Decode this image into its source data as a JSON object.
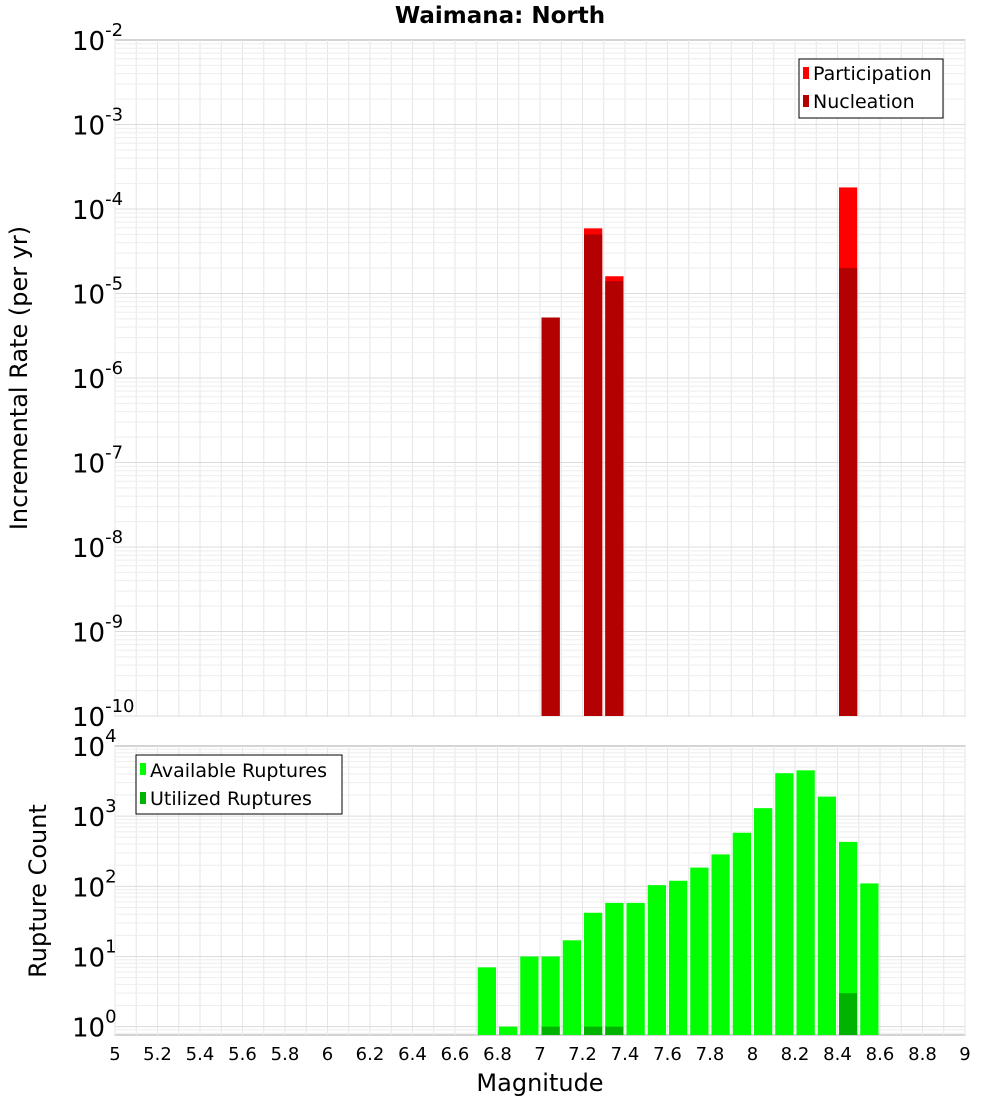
{
  "chart_data": [
    {
      "type": "bar",
      "title": "Waimana: North",
      "ylabel": "Incremental Rate (per yr)",
      "xlabel": "",
      "yscale": "log",
      "xlim": [
        5,
        9
      ],
      "ylim": [
        1e-10,
        0.01
      ],
      "bin_width": 0.1,
      "y_ticks": [
        {
          "base": "10",
          "exp": "-10",
          "value": 1e-10
        },
        {
          "base": "10",
          "exp": "-9",
          "value": 1e-09
        },
        {
          "base": "10",
          "exp": "-8",
          "value": 1e-08
        },
        {
          "base": "10",
          "exp": "-7",
          "value": 1e-07
        },
        {
          "base": "10",
          "exp": "-6",
          "value": 1e-06
        },
        {
          "base": "10",
          "exp": "-5",
          "value": 1e-05
        },
        {
          "base": "10",
          "exp": "-4",
          "value": 0.0001
        },
        {
          "base": "10",
          "exp": "-3",
          "value": 0.001
        },
        {
          "base": "10",
          "exp": "-2",
          "value": 0.01
        }
      ],
      "legend_position": "top-right",
      "series": [
        {
          "name": "Participation",
          "color": "#ff0000",
          "points": [
            {
              "x": 7.05,
              "y": 5.2e-06
            },
            {
              "x": 7.25,
              "y": 5.9e-05
            },
            {
              "x": 7.35,
              "y": 1.6e-05
            },
            {
              "x": 8.45,
              "y": 0.00018
            }
          ]
        },
        {
          "name": "Nucleation",
          "color": "#b30000",
          "points": [
            {
              "x": 7.05,
              "y": 5.2e-06
            },
            {
              "x": 7.25,
              "y": 5e-05
            },
            {
              "x": 7.35,
              "y": 1.4e-05
            },
            {
              "x": 8.45,
              "y": 2e-05
            }
          ]
        }
      ]
    },
    {
      "type": "bar",
      "title": "",
      "ylabel": "Rupture Count",
      "xlabel": "Magnitude",
      "yscale": "log",
      "xlim": [
        5,
        9
      ],
      "ylim": [
        0.76,
        10000
      ],
      "bin_width": 0.1,
      "x_ticks": [
        "5",
        "5.2",
        "5.4",
        "5.6",
        "5.8",
        "6",
        "6.2",
        "6.4",
        "6.6",
        "6.8",
        "7",
        "7.2",
        "7.4",
        "7.6",
        "7.8",
        "8",
        "8.2",
        "8.4",
        "8.6",
        "8.8",
        "9"
      ],
      "y_ticks": [
        {
          "base": "10",
          "exp": "0",
          "value": 1
        },
        {
          "base": "10",
          "exp": "1",
          "value": 10
        },
        {
          "base": "10",
          "exp": "2",
          "value": 100
        },
        {
          "base": "10",
          "exp": "3",
          "value": 1000
        },
        {
          "base": "10",
          "exp": "4",
          "value": 10000
        }
      ],
      "legend_position": "top-left",
      "series": [
        {
          "name": "Available Ruptures",
          "color": "#00ff00",
          "points": [
            {
              "x": 6.75,
              "y": 7
            },
            {
              "x": 6.85,
              "y": 1
            },
            {
              "x": 6.95,
              "y": 10
            },
            {
              "x": 7.05,
              "y": 10
            },
            {
              "x": 7.15,
              "y": 17
            },
            {
              "x": 7.25,
              "y": 42
            },
            {
              "x": 7.35,
              "y": 58
            },
            {
              "x": 7.45,
              "y": 58
            },
            {
              "x": 7.55,
              "y": 104
            },
            {
              "x": 7.65,
              "y": 120
            },
            {
              "x": 7.75,
              "y": 185
            },
            {
              "x": 7.85,
              "y": 285
            },
            {
              "x": 7.95,
              "y": 580
            },
            {
              "x": 8.05,
              "y": 1300
            },
            {
              "x": 8.15,
              "y": 4100
            },
            {
              "x": 8.25,
              "y": 4500
            },
            {
              "x": 8.35,
              "y": 1900
            },
            {
              "x": 8.45,
              "y": 430
            },
            {
              "x": 8.55,
              "y": 110
            }
          ]
        },
        {
          "name": "Utilized Ruptures",
          "color": "#00b300",
          "points": [
            {
              "x": 7.05,
              "y": 1
            },
            {
              "x": 7.25,
              "y": 1
            },
            {
              "x": 7.35,
              "y": 1
            },
            {
              "x": 8.45,
              "y": 3
            }
          ]
        }
      ]
    }
  ]
}
